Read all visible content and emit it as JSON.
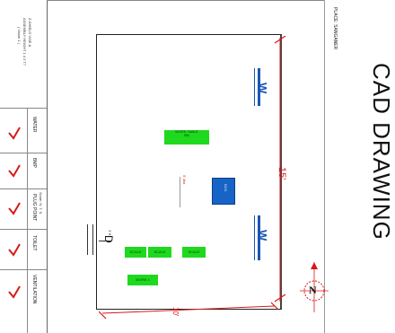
{
  "title": "CAD DRAWING",
  "place_label": "PLACE:  SANGANER",
  "title_block": {
    "lines": [
      "Z-SHIELD VISE &",
      "ASSEMBLY HEIGHT 1 4 3 T7",
      "( Vision 1 )"
    ],
    "scale_note": "Scale: N. T. S.",
    "checklist": [
      "WATER",
      "BMP",
      "PLUG POINT",
      "TOILET",
      "VENTILATION"
    ]
  },
  "labels": {
    "window_top": "W",
    "window_bottom": "W",
    "door": "D",
    "door_dim": "3' ft",
    "dim_length": "15'",
    "dim_width": "10'",
    "distance_note": "5' dist",
    "compass": "N"
  },
  "furniture": {
    "top_item": [
      "WORK TABLE",
      "BN"
    ],
    "blue_box": "BOX",
    "row_items": [
      "SCALE",
      "SCALE",
      "SCALE"
    ],
    "bottom_item": "WORK 1"
  },
  "colors": {
    "furniture_green": "#1ed91e",
    "box_blue": "#1764c6",
    "window_blue": "#1a55b3",
    "dimension_red": "#d81818"
  }
}
